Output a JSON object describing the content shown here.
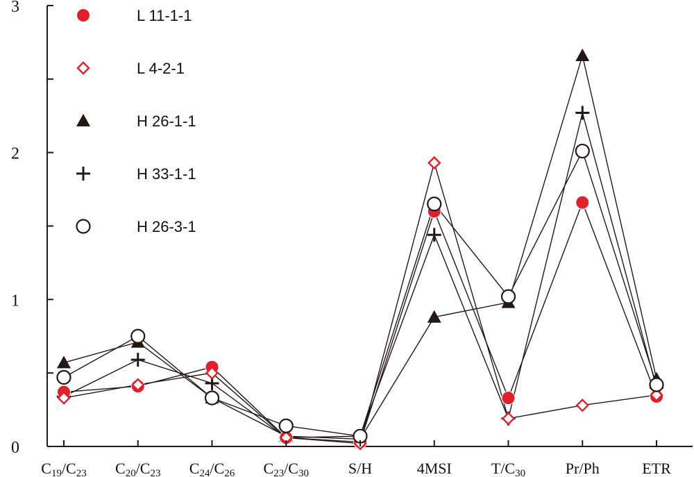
{
  "chart_data": {
    "type": "line",
    "categories": [
      "C19/C23",
      "C20/C23",
      "C24/C26",
      "C23/C30",
      "S/H",
      "4MSI",
      "T/C30",
      "Pr/Ph",
      "ETR"
    ],
    "category_parts": [
      [
        [
          "C",
          "base"
        ],
        [
          "19",
          "sub"
        ],
        [
          "/C",
          "base"
        ],
        [
          "23",
          "sub"
        ]
      ],
      [
        [
          "C",
          "base"
        ],
        [
          "20",
          "sub"
        ],
        [
          "/C",
          "base"
        ],
        [
          "23",
          "sub"
        ]
      ],
      [
        [
          "C",
          "base"
        ],
        [
          "24",
          "sub"
        ],
        [
          "/C",
          "base"
        ],
        [
          "26",
          "sub"
        ]
      ],
      [
        [
          "C",
          "base"
        ],
        [
          "23",
          "sub"
        ],
        [
          "/C",
          "base"
        ],
        [
          "30",
          "sub"
        ]
      ],
      [
        [
          "S/H",
          "base"
        ]
      ],
      [
        [
          "4MSI",
          "base"
        ]
      ],
      [
        [
          "T/C",
          "base"
        ],
        [
          "30",
          "sub"
        ]
      ],
      [
        [
          "Pr/Ph",
          "base"
        ]
      ],
      [
        [
          "ETR",
          "base"
        ]
      ]
    ],
    "ylim": [
      0,
      3
    ],
    "y_ticks": [
      "0",
      "1",
      "2",
      "3"
    ],
    "minor_ticks": [
      0.5,
      1.5,
      2.5
    ],
    "grid": false,
    "legend_position": "top-left",
    "series": [
      {
        "name": "L 11-1-1",
        "marker": "filled-circle",
        "color": "#e0202a",
        "values": [
          0.37,
          0.41,
          0.54,
          0.06,
          0.03,
          1.6,
          0.33,
          1.66,
          0.34
        ]
      },
      {
        "name": "L 4-2-1",
        "marker": "open-diamond",
        "color": "#e0202a",
        "values": [
          0.33,
          0.42,
          0.5,
          0.06,
          0.02,
          1.93,
          0.19,
          0.28,
          0.35
        ]
      },
      {
        "name": "H 26-1-1",
        "marker": "filled-triangle",
        "color": "#231815",
        "values": [
          0.57,
          0.71,
          0.33,
          0.07,
          0.05,
          0.88,
          0.98,
          2.66,
          0.46
        ]
      },
      {
        "name": "H 33-1-1",
        "marker": "plus",
        "color": "#231815",
        "values": [
          0.34,
          0.59,
          0.43,
          0.06,
          0.07,
          1.44,
          0.19,
          2.27,
          0.4
        ]
      },
      {
        "name": "H 26-3-1",
        "marker": "open-circle",
        "color": "#231815",
        "values": [
          0.47,
          0.75,
          0.33,
          0.14,
          0.07,
          1.65,
          1.02,
          2.01,
          0.42
        ]
      }
    ]
  },
  "colors": {
    "axis": "#231815",
    "line": "#231815",
    "red": "#e0202a",
    "black": "#231815"
  }
}
